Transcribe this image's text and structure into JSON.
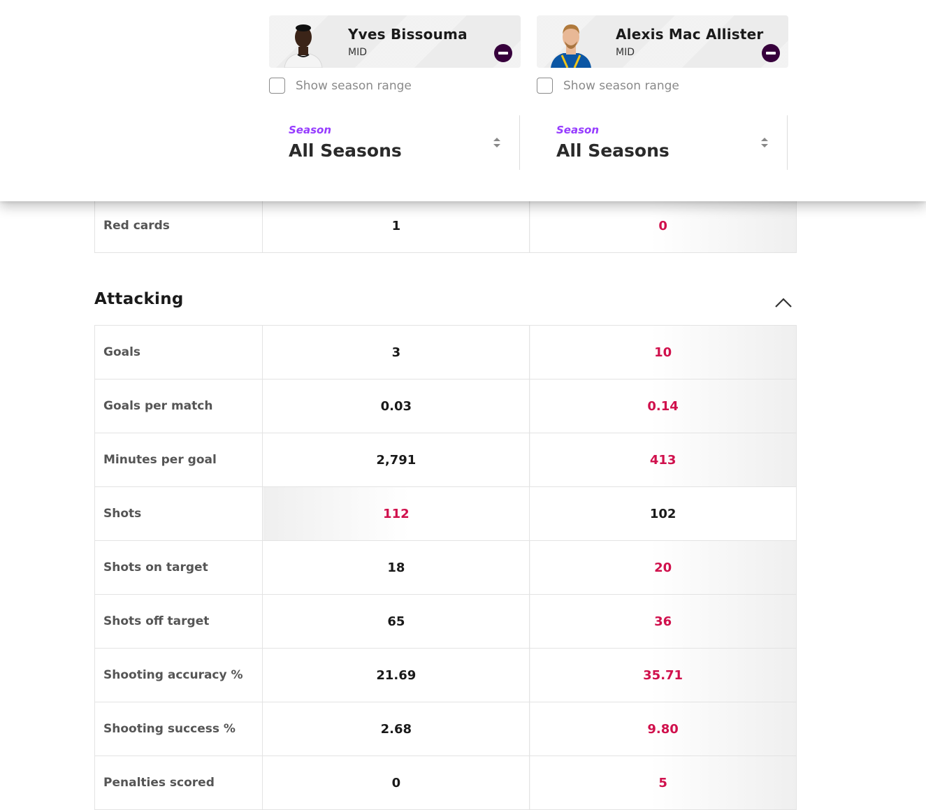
{
  "players": [
    {
      "name": "Yves Bissouma",
      "position": "MID",
      "show_season_range": "Show season range",
      "season_label": "Season",
      "season_value": "All Seasons"
    },
    {
      "name": "Alexis Mac Allister",
      "position": "MID",
      "show_season_range": "Show season range",
      "season_label": "Season",
      "season_value": "All Seasons"
    }
  ],
  "discipline_rows": [
    {
      "label": "Red cards",
      "p1": "1",
      "p2": "0",
      "winner": "p2"
    }
  ],
  "attacking": {
    "title": "Attacking",
    "rows": [
      {
        "label": "Goals",
        "p1": "3",
        "p2": "10",
        "winner": "p2"
      },
      {
        "label": "Goals per match",
        "p1": "0.03",
        "p2": "0.14",
        "winner": "p2"
      },
      {
        "label": "Minutes per goal",
        "p1": "2,791",
        "p2": "413",
        "winner": "p2"
      },
      {
        "label": "Shots",
        "p1": "112",
        "p2": "102",
        "winner": "p1"
      },
      {
        "label": "Shots on target",
        "p1": "18",
        "p2": "20",
        "winner": "p2"
      },
      {
        "label": "Shots off target",
        "p1": "65",
        "p2": "36",
        "winner": "p2"
      },
      {
        "label": "Shooting accuracy %",
        "p1": "21.69",
        "p2": "35.71",
        "winner": "p2"
      },
      {
        "label": "Shooting success %",
        "p1": "2.68",
        "p2": "9.80",
        "winner": "p2"
      },
      {
        "label": "Penalties scored",
        "p1": "0",
        "p2": "5",
        "winner": "p2"
      }
    ]
  },
  "colors": {
    "accent_purple": "#963cff",
    "brand_dark": "#37003c",
    "winner_red": "#d0104c"
  },
  "icons": [
    "remove-icon",
    "sort-icon",
    "chevron-up-icon",
    "checkbox-icon"
  ]
}
